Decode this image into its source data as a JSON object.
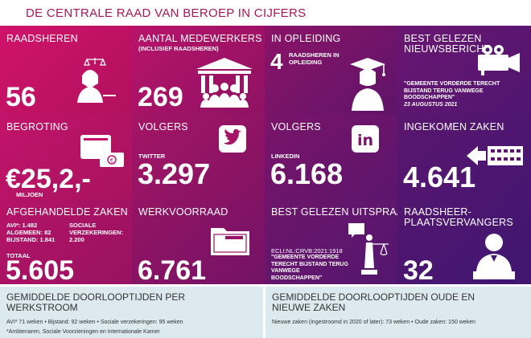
{
  "title": "DE CENTRALE RAAD VAN BEROEP IN CIJFERS",
  "tiles": {
    "raadsheren": {
      "label": "RAADSHEREN",
      "value": "56",
      "icon": "judge-icon"
    },
    "medewerkers": {
      "label": "AANTAL MEDEWERKERS",
      "sub": "(INCLUSIEF RAADSHEREN)",
      "value": "269",
      "icon": "court-building-icon"
    },
    "opleiding": {
      "label": "IN OPLEIDING",
      "value": "4",
      "sub": "RAADSHEREN IN OPLEIDING",
      "icon": "graduate-icon"
    },
    "nieuws": {
      "label": "BEST GELEZEN NIEUWSBERICHT",
      "quote": "\"GEMEENTE VORDERDE TERECHT BIJSTAND TERUG VANWEGE BOODSCHAPPEN\"",
      "date": "23 AUGUSTUS 2021",
      "icon": "video-camera-icon"
    },
    "begroting": {
      "label": "BEGROTING",
      "value": "€25,2,-",
      "sub": "MILJOEN",
      "icon": "wallet-icon"
    },
    "twitter": {
      "label": "VOLGERS",
      "sub": "TWITTER",
      "value": "3.297",
      "icon": "twitter-icon"
    },
    "linkedin": {
      "label": "VOLGERS",
      "sub": "LINKEDIN",
      "value": "6.168",
      "icon": "linkedin-icon",
      "icon_text": "in"
    },
    "ingekomen": {
      "label": "INGEKOMEN ZAKEN",
      "value": "4.641",
      "icon": "incoming-cases-icon"
    },
    "afgehandeld": {
      "label": "AFGEHANDELDE ZAKEN",
      "lines": [
        {
          "k": "AVI*:",
          "v": "1.482"
        },
        {
          "k": "ALGEMEEN:",
          "v": "82"
        },
        {
          "k": "BIJSTAND:",
          "v": "1.841"
        }
      ],
      "sociale_k": "SOCIALE VERZEKERINGEN:",
      "sociale_v": "2.200",
      "total_label": "TOTAAL",
      "value": "5.605"
    },
    "werkvoorraad": {
      "label": "WERKVOORRAAD",
      "value": "6.761",
      "icon": "folder-icon"
    },
    "uitspraak": {
      "label": "BEST GELEZEN UITSPRAAK",
      "ecli": "ECLI:NL:CRVB:2021:1918",
      "quote": "\"GEMEENTE VORDERDE TERECHT BIJSTAND TERUG VANWEGE BOODSCHAPPEN\"",
      "icon": "justice-icon"
    },
    "plaatsvervangers": {
      "label": "RAADSHEER-PLAATSVERVANGERS",
      "label1": "RAADSHEER-",
      "label2": "PLAATSVERVANGERS",
      "value": "32",
      "icon": "judge-male-icon"
    }
  },
  "bottom": {
    "left": {
      "heading1": "GEMIDDELDE DOORLOOPTIJDEN PER",
      "heading2": "WERKSTROOM",
      "line": "AVI* 71 weken  •  Bijstand: 92 weken  •  Sociale verzekeringen: 95 weken",
      "footnote": "*Ambtenaren, Sociale Voorzieningen en Internationale Kamer"
    },
    "right": {
      "heading1": "GEMIDDELDE DOORLOOPTIJDEN OUDE EN",
      "heading2": "NIEUWE ZAKEN",
      "line": "Nieuwe zaken (ingestroomd in 2020 of later): 73 weken  •  Oude zaken: 150 weken"
    }
  }
}
